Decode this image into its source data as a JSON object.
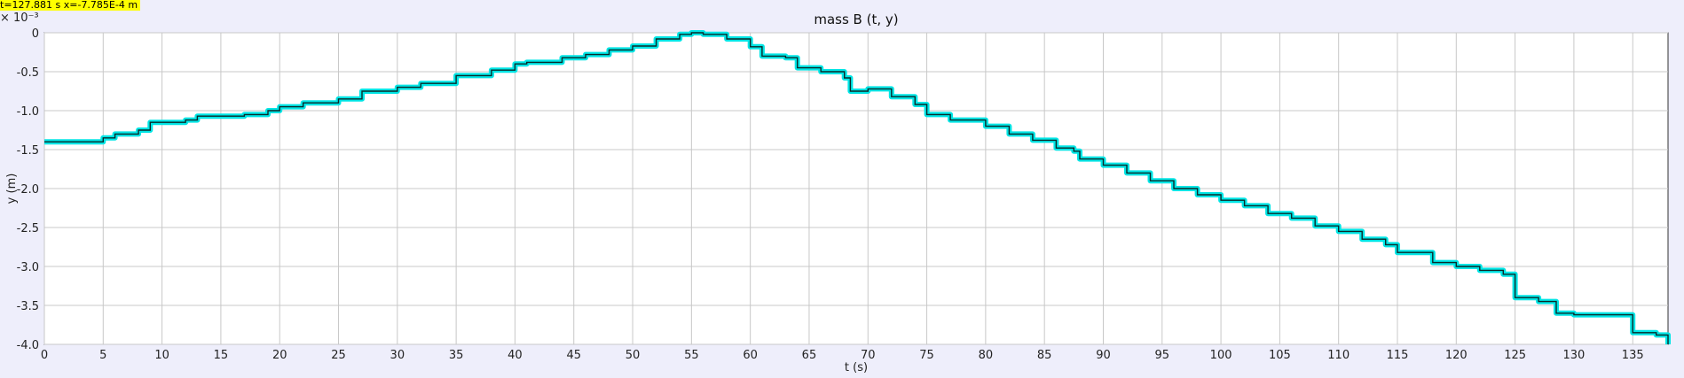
{
  "readout": "t=127.881 s  x=-7.785E-4 m",
  "chart_data": {
    "type": "line",
    "title": "mass B (t, y)",
    "xlabel": "t (s)",
    "ylabel": "y (m)",
    "y_multiplier_label": "× 10⁻³",
    "xlim": [
      0,
      138
    ],
    "ylim": [
      -4.0,
      0
    ],
    "xticks": [
      0,
      5,
      10,
      15,
      20,
      25,
      30,
      35,
      40,
      45,
      50,
      55,
      60,
      65,
      70,
      75,
      80,
      85,
      90,
      95,
      100,
      105,
      110,
      115,
      120,
      125,
      130,
      135
    ],
    "yticks": [
      0,
      -0.5,
      -1.0,
      -1.5,
      -2.0,
      -2.5,
      -3.0,
      -3.5,
      -4.0
    ],
    "ytick_labels": [
      "0",
      "-0.5",
      "-1.0",
      "-1.5",
      "-2.0",
      "-2.5",
      "-3.0",
      "-3.5",
      "-4.0"
    ],
    "grid": true,
    "series": [
      {
        "color": "#00e5e5",
        "x": [
          0,
          2.5,
          5,
          6,
          8,
          9,
          12,
          13,
          17,
          19,
          20,
          22,
          25,
          27,
          30,
          32,
          35,
          38,
          40,
          41,
          44,
          46,
          48,
          50,
          52,
          54,
          55,
          56,
          58,
          60,
          61,
          63,
          64,
          66,
          68,
          68.5,
          70,
          72,
          74,
          75,
          77,
          80,
          82,
          84,
          86,
          87.5,
          88,
          90,
          92,
          94,
          96,
          98,
          100,
          102,
          104,
          106,
          108,
          110,
          112,
          114,
          115,
          117,
          118,
          120,
          122,
          124,
          125,
          127,
          128.5,
          130,
          134,
          135,
          137,
          138
        ],
        "y": [
          -1.4,
          -1.4,
          -1.35,
          -1.3,
          -1.25,
          -1.15,
          -1.12,
          -1.07,
          -1.05,
          -1.0,
          -0.95,
          -0.9,
          -0.85,
          -0.75,
          -0.7,
          -0.65,
          -0.55,
          -0.48,
          -0.4,
          -0.38,
          -0.32,
          -0.28,
          -0.22,
          -0.17,
          -0.08,
          -0.02,
          0.0,
          -0.02,
          -0.08,
          -0.18,
          -0.3,
          -0.32,
          -0.45,
          -0.5,
          -0.58,
          -0.75,
          -0.72,
          -0.82,
          -0.92,
          -1.05,
          -1.12,
          -1.2,
          -1.3,
          -1.38,
          -1.48,
          -1.52,
          -1.62,
          -1.7,
          -1.8,
          -1.9,
          -2.0,
          -2.08,
          -2.15,
          -2.22,
          -2.32,
          -2.38,
          -2.48,
          -2.55,
          -2.65,
          -2.72,
          -2.82,
          -2.82,
          -2.95,
          -3.0,
          -3.05,
          -3.1,
          -3.4,
          -3.45,
          -3.6,
          -3.62,
          -3.62,
          -3.85,
          -3.88,
          -4.0
        ]
      }
    ]
  }
}
